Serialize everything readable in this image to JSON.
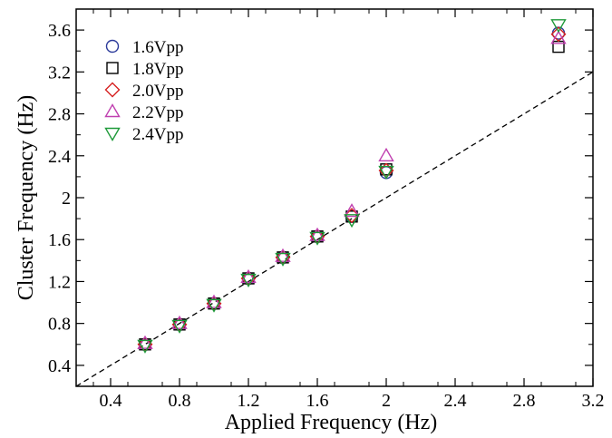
{
  "chart_data": {
    "type": "scatter",
    "title": "",
    "xlabel": "Applied Frequency (Hz)",
    "ylabel": "Cluster Frequency (Hz)",
    "xlim": [
      0.2,
      3.2
    ],
    "ylim": [
      0.2,
      3.8
    ],
    "x_ticks": [
      0.4,
      0.8,
      1.2,
      1.6,
      2.0,
      2.4,
      2.8,
      3.2
    ],
    "x_tick_labels": [
      "0.4",
      "0.8",
      "1.2",
      "1.6",
      "2",
      "2.4",
      "2.8",
      "3.2"
    ],
    "y_ticks": [
      0.4,
      0.8,
      1.2,
      1.6,
      2.0,
      2.4,
      2.8,
      3.2,
      3.6
    ],
    "y_tick_labels": [
      "0.4",
      "0.8",
      "1.2",
      "1.6",
      "2",
      "2.4",
      "2.8",
      "3.2",
      "3.6"
    ],
    "grid": false,
    "legend_position": "top-left",
    "reference_line": {
      "style": "dashed",
      "color": "#000000",
      "x": [
        0.2,
        3.2
      ],
      "y": [
        0.2,
        3.2
      ]
    },
    "series": [
      {
        "name": "1.6Vpp",
        "marker": "circle",
        "color": "#2b3a9a",
        "x": [
          0.6,
          0.8,
          1.0,
          1.2,
          1.4,
          1.6,
          1.8,
          2.0,
          3.0
        ],
        "y": [
          0.6,
          0.79,
          0.99,
          1.23,
          1.43,
          1.63,
          1.82,
          2.24,
          3.57
        ]
      },
      {
        "name": "1.8Vpp",
        "marker": "square",
        "color": "#000000",
        "x": [
          0.6,
          0.8,
          1.0,
          1.2,
          1.4,
          1.6,
          1.8,
          2.0,
          3.0
        ],
        "y": [
          0.6,
          0.79,
          0.99,
          1.23,
          1.43,
          1.63,
          1.82,
          2.27,
          3.44
        ]
      },
      {
        "name": "2.0Vpp",
        "marker": "diamond",
        "color": "#d62020",
        "x": [
          0.6,
          0.8,
          1.0,
          1.2,
          1.4,
          1.6,
          1.8,
          2.0,
          3.0
        ],
        "y": [
          0.6,
          0.79,
          0.99,
          1.23,
          1.43,
          1.63,
          1.83,
          2.26,
          3.56
        ]
      },
      {
        "name": "2.2Vpp",
        "marker": "triangle-up",
        "color": "#c040b0",
        "x": [
          0.6,
          0.8,
          1.0,
          1.2,
          1.4,
          1.6,
          1.8,
          2.0,
          3.0
        ],
        "y": [
          0.61,
          0.8,
          1.0,
          1.24,
          1.44,
          1.64,
          1.87,
          2.4,
          3.52
        ]
      },
      {
        "name": "2.4Vpp",
        "marker": "triangle-down",
        "color": "#1f9a3a",
        "x": [
          0.6,
          0.8,
          1.0,
          1.2,
          1.4,
          1.6,
          1.8,
          2.0,
          3.0
        ],
        "y": [
          0.59,
          0.78,
          0.98,
          1.22,
          1.42,
          1.62,
          1.79,
          2.25,
          3.65
        ]
      }
    ]
  }
}
